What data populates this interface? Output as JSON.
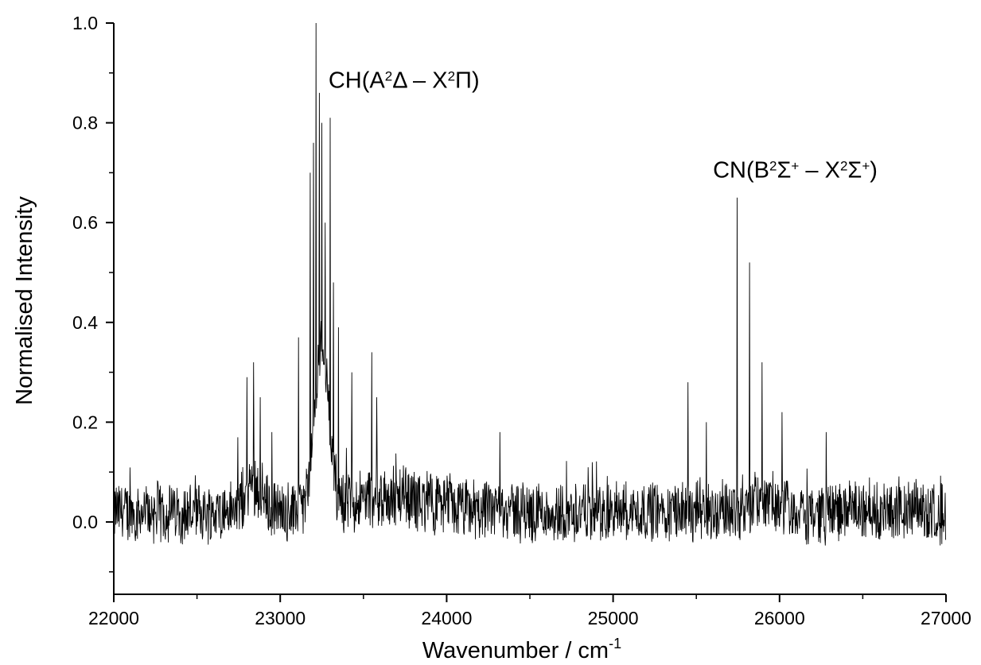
{
  "chart_data": {
    "type": "line",
    "xlabel": "Wavenumber / cm",
    "xlabel_sup": "-1",
    "ylabel": "Normalised Intensity",
    "xlim": [
      22000,
      27000
    ],
    "ylim": [
      -0.145,
      1.0
    ],
    "xticks": [
      22000,
      23000,
      24000,
      25000,
      26000,
      27000
    ],
    "xtick_labels": [
      "22000",
      "23000",
      "24000",
      "25000",
      "26000",
      "27000"
    ],
    "yticks": [
      0.0,
      0.2,
      0.4,
      0.6,
      0.8,
      1.0
    ],
    "ytick_labels": [
      "0.0",
      "0.2",
      "0.4",
      "0.6",
      "0.8",
      "1.0"
    ],
    "grid": false,
    "legend": "none",
    "line_color": "#000000",
    "annotations": [
      {
        "text_parts": [
          "CH(A",
          "2",
          "Δ – X",
          "2",
          "Π)"
        ],
        "x": 23290,
        "y": 0.87
      },
      {
        "text_parts": [
          "CN(B",
          "2",
          "Σ",
          "+",
          " – X",
          "2",
          "Σ",
          "+",
          ")"
        ],
        "x": 25600,
        "y": 0.69
      }
    ],
    "series": [
      {
        "peaks": [
          {
            "x": 22800,
            "y": 0.29
          },
          {
            "x": 22840,
            "y": 0.32
          },
          {
            "x": 22880,
            "y": 0.25
          },
          {
            "x": 22950,
            "y": 0.18
          },
          {
            "x": 23110,
            "y": 0.37
          },
          {
            "x": 23180,
            "y": 0.7
          },
          {
            "x": 23200,
            "y": 0.76
          },
          {
            "x": 23215,
            "y": 1.0
          },
          {
            "x": 23235,
            "y": 0.86
          },
          {
            "x": 23250,
            "y": 0.8
          },
          {
            "x": 23270,
            "y": 0.6
          },
          {
            "x": 23300,
            "y": 0.81
          },
          {
            "x": 23320,
            "y": 0.48
          },
          {
            "x": 23350,
            "y": 0.39
          },
          {
            "x": 23430,
            "y": 0.3
          },
          {
            "x": 23550,
            "y": 0.34
          },
          {
            "x": 23580,
            "y": 0.25
          },
          {
            "x": 24320,
            "y": 0.18
          },
          {
            "x": 25450,
            "y": 0.28
          },
          {
            "x": 25560,
            "y": 0.2
          },
          {
            "x": 25745,
            "y": 0.65
          },
          {
            "x": 25820,
            "y": 0.52
          },
          {
            "x": 25895,
            "y": 0.32
          },
          {
            "x": 26015,
            "y": 0.22
          },
          {
            "x": 26280,
            "y": 0.18
          }
        ],
        "baseline": 0.02,
        "noise_amplitude": 0.07,
        "broad_features": [
          {
            "center": 22840,
            "width": 70,
            "height": 0.06
          },
          {
            "center": 23250,
            "width": 60,
            "height": 0.33
          },
          {
            "center": 23650,
            "width": 350,
            "height": 0.03
          },
          {
            "center": 25900,
            "width": 150,
            "height": 0.02
          }
        ]
      }
    ]
  }
}
